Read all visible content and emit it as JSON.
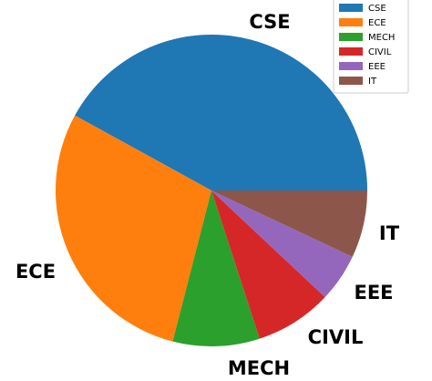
{
  "chart_data": {
    "type": "pie",
    "categories": [
      "CSE",
      "ECE",
      "MECH",
      "CIVIL",
      "EEE",
      "IT"
    ],
    "values": [
      42,
      29,
      9,
      8,
      5,
      7
    ],
    "colors": [
      "#1f77b4",
      "#ff7f0e",
      "#2ca02c",
      "#d62728",
      "#9467bd",
      "#8c564b"
    ],
    "start_angle_deg": 0,
    "direction": "counterclockwise",
    "legend_position": "top-right"
  }
}
